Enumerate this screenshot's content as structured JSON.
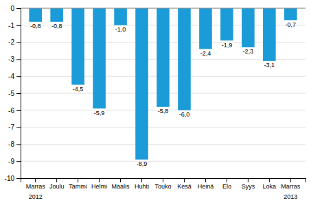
{
  "chart_data": {
    "type": "bar",
    "categories": [
      "Marras",
      "Joulu",
      "Tammi",
      "Helmi",
      "Maalis",
      "Huhti",
      "Touko",
      "Kesä",
      "Heinä",
      "Elo",
      "Syys",
      "Loka",
      "Marras"
    ],
    "values": [
      -0.8,
      -0.8,
      -4.5,
      -5.9,
      -1.0,
      -8.9,
      -5.8,
      -6.0,
      -2.4,
      -1.9,
      -2.3,
      -3.1,
      -0.7
    ],
    "value_labels": [
      "-0,8",
      "-0,8",
      "-4,5",
      "-5,9",
      "-1,0",
      "-8,9",
      "-5,8",
      "-6,0",
      "-2,4",
      "-1,9",
      "-2,3",
      "-3,1",
      "-0,7"
    ],
    "data_labels": true,
    "color": "#1b9cd8",
    "ylim": [
      -10,
      0
    ],
    "yticks": [
      0,
      -1,
      -2,
      -3,
      -4,
      -5,
      -6,
      -7,
      -8,
      -9,
      -10
    ],
    "grid": true,
    "annotations": [
      {
        "text": "2012",
        "x": 0
      },
      {
        "text": "2013",
        "x": 12
      }
    ]
  }
}
